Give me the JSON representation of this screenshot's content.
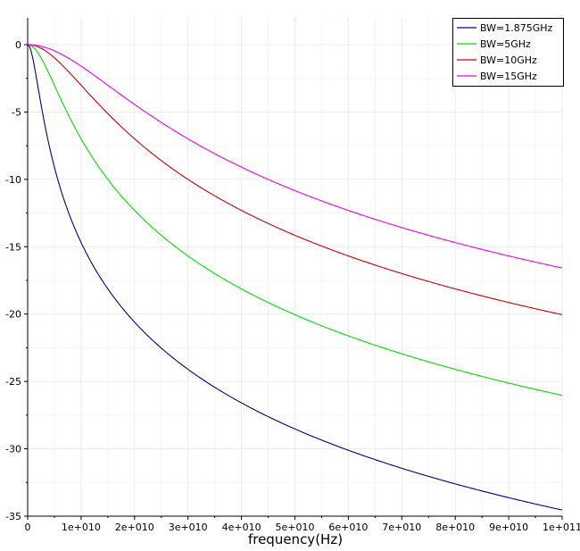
{
  "chart_data": {
    "type": "line",
    "title": "",
    "xlabel": "frequency(Hz)",
    "ylabel": "",
    "xlim": [
      0,
      100000000000
    ],
    "ylim": [
      -35,
      2
    ],
    "x_ticks": [
      {
        "value": 0,
        "label": "0"
      },
      {
        "value": 10000000000,
        "label": "1e+010"
      },
      {
        "value": 20000000000,
        "label": "2e+010"
      },
      {
        "value": 30000000000,
        "label": "3e+010"
      },
      {
        "value": 40000000000,
        "label": "4e+010"
      },
      {
        "value": 50000000000,
        "label": "5e+010"
      },
      {
        "value": 60000000000,
        "label": "6e+010"
      },
      {
        "value": 70000000000,
        "label": "7e+010"
      },
      {
        "value": 80000000000,
        "label": "8e+010"
      },
      {
        "value": 90000000000,
        "label": "9e+010"
      },
      {
        "value": 100000000000,
        "label": "1e+011"
      }
    ],
    "y_ticks": [
      {
        "value": 0,
        "label": "0"
      },
      {
        "value": -5,
        "label": "-5"
      },
      {
        "value": -10,
        "label": "-10"
      },
      {
        "value": -15,
        "label": "-15"
      },
      {
        "value": -20,
        "label": "-20"
      },
      {
        "value": -25,
        "label": "-25"
      },
      {
        "value": -30,
        "label": "-30"
      },
      {
        "value": -35,
        "label": "-35"
      }
    ],
    "grid": true,
    "legend": "top-right",
    "series": [
      {
        "name": "BW=1.875GHz",
        "color": "#00008b",
        "bandwidth_hz": 1875000000
      },
      {
        "name": "BW=5GHz",
        "color": "#00dd00",
        "bandwidth_hz": 5000000000
      },
      {
        "name": "BW=10GHz",
        "color": "#cc0000",
        "bandwidth_hz": 10000000000
      },
      {
        "name": "BW=15GHz",
        "color": "#ee00ee",
        "bandwidth_hz": 15000000000
      }
    ]
  }
}
